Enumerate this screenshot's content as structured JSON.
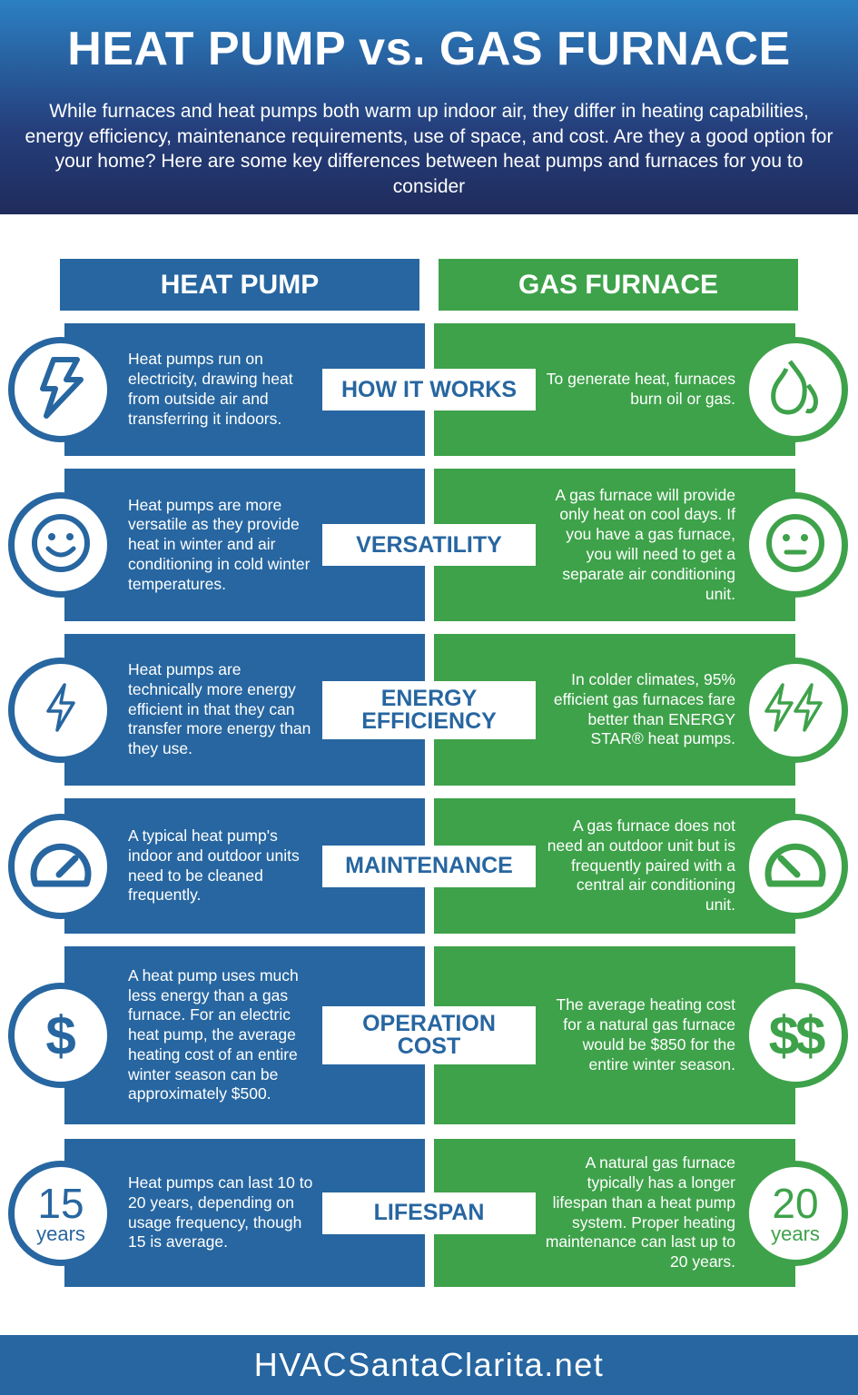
{
  "header": {
    "title": "HEAT PUMP vs. GAS FURNACE",
    "intro": "While furnaces and heat pumps both warm up indoor air, they differ in heating capabilities, energy efficiency, maintenance requirements, use of space, and cost. Are they a good option for your home? Here are some key differences between heat pumps and furnaces for you to consider"
  },
  "columns": {
    "left": "HEAT PUMP",
    "right": "GAS FURNACE"
  },
  "colors": {
    "blue": "#2766a0",
    "green": "#3ea24a"
  },
  "rows": [
    {
      "label": "HOW IT WORKS",
      "left_icon": "lightning-bolt-icon",
      "right_icon": "flame-icon",
      "left": "Heat pumps run on electricity, drawing heat from outside air and transferring it indoors.",
      "right": "To generate heat, furnaces burn oil or gas."
    },
    {
      "label": "VERSATILITY",
      "left_icon": "smiley-face-icon",
      "right_icon": "neutral-face-icon",
      "left": "Heat pumps are more versatile as they provide heat in winter and air conditioning in cold winter temperatures.",
      "right": "A gas furnace will provide only heat on cool days. If you have a gas furnace, you will need to get a separate air conditioning unit."
    },
    {
      "label": "ENERGY EFFICIENCY",
      "left_icon": "single-bolt-icon",
      "right_icon": "double-bolt-icon",
      "left": "Heat pumps are technically more energy efficient in that they can transfer more energy than they use.",
      "right": "In colder climates, 95% efficient gas furnaces fare better than ENERGY STAR® heat pumps."
    },
    {
      "label": "MAINTENANCE",
      "left_icon": "gauge-icon",
      "right_icon": "gauge-icon",
      "left": "A typical heat pump's indoor and outdoor units need to be cleaned frequently.",
      "right": "A gas furnace does not need an outdoor unit but is frequently paired with a central air conditioning unit."
    },
    {
      "label": "OPERATION COST",
      "left_icon": "dollar-icon",
      "right_icon": "double-dollar-icon",
      "left_symbol": "$",
      "right_symbol": "$$",
      "left": "A heat pump uses much less energy than a gas furnace. For an electric heat pump, the average heating cost of an entire winter season can be approximately $500.",
      "right": "The average heating cost for a natural gas furnace would be $850 for the entire winter season."
    },
    {
      "label": "LIFESPAN",
      "left_number": "15",
      "left_unit": "years",
      "right_number": "20",
      "right_unit": "years",
      "left": "Heat pumps can last 10 to 20 years, depending on usage frequency, though 15 is average.",
      "right": "A natural gas furnace typically has a longer lifespan than a heat pump system. Proper heating maintenance can last up to 20 years."
    }
  ],
  "footer": "HVACSantaClarita.net"
}
